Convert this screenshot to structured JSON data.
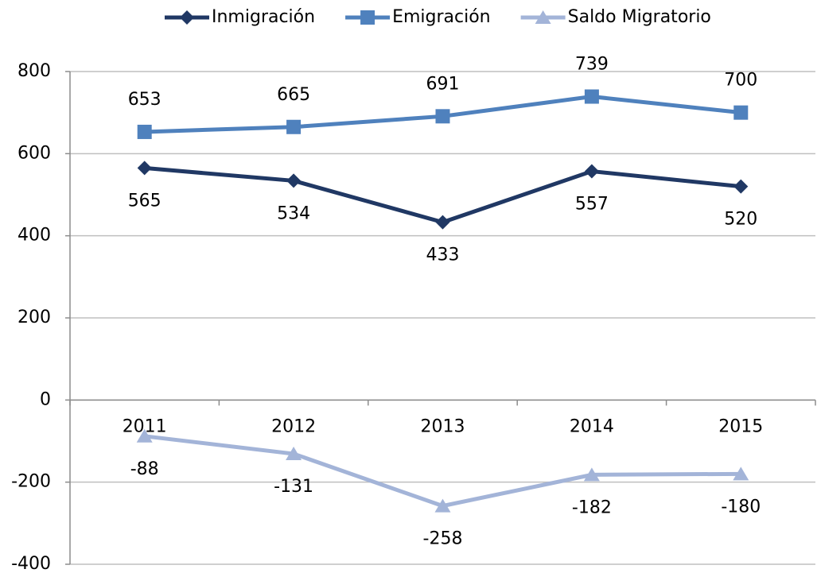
{
  "chart_data": {
    "type": "line",
    "categories": [
      "2011",
      "2012",
      "2013",
      "2014",
      "2015"
    ],
    "series": [
      {
        "name": "Inmigración",
        "color": "#203864",
        "marker": "diamond",
        "label_position": "below",
        "values": [
          565,
          534,
          433,
          557,
          520
        ]
      },
      {
        "name": "Emigración",
        "color": "#4f81bd",
        "marker": "square",
        "label_position": "above",
        "values": [
          653,
          665,
          691,
          739,
          700
        ]
      },
      {
        "name": "Saldo Migratorio",
        "color": "#a3b4d8",
        "marker": "triangle",
        "label_position": "below",
        "values": [
          -88,
          -131,
          -258,
          -182,
          -180
        ]
      }
    ],
    "ylim": [
      -400,
      800
    ],
    "yticks": [
      -400,
      -200,
      0,
      200,
      400,
      600,
      800
    ],
    "grid": true,
    "legend": "top"
  }
}
